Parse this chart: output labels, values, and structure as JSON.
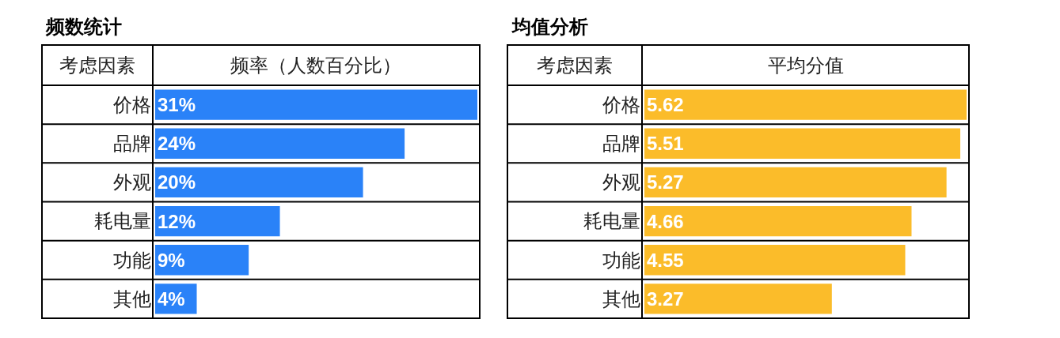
{
  "chart_data": [
    {
      "type": "bar",
      "orientation": "horizontal",
      "title": "频数统计",
      "ylabel": "考虑因素",
      "xlabel": "频率（人数百分比）",
      "categories": [
        "价格",
        "品牌",
        "外观",
        "耗电量",
        "功能",
        "其他"
      ],
      "color": "#2a82f8",
      "values": [
        31,
        24,
        20,
        12,
        9,
        4
      ],
      "value_labels": [
        "31%",
        "24%",
        "20%",
        "12%",
        "9%",
        "4%"
      ]
    },
    {
      "type": "bar",
      "orientation": "horizontal",
      "title": "均值分析",
      "ylabel": "考虑因素",
      "xlabel": "平均分值",
      "categories": [
        "价格",
        "品牌",
        "外观",
        "耗电量",
        "功能",
        "其他"
      ],
      "color": "#fbbc2a",
      "values": [
        5.62,
        5.51,
        5.27,
        4.66,
        4.55,
        3.27
      ],
      "data_labels": true
    }
  ]
}
